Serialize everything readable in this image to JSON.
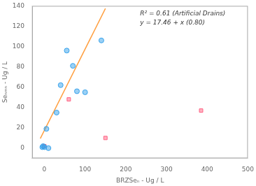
{
  "chart_data": {
    "type": "scatter",
    "xlabel": "BRZSeₙ - Ug / L",
    "ylabel": "Seₙₘₙ - Ug / L",
    "annotations": [
      "R² = 0.61 (Artificial Drains)",
      "y = 17.46 + x (0.80)"
    ],
    "series": [
      {
        "type": "scatter",
        "marker": "circle",
        "x": [
          -5,
          -3,
          0,
          5,
          10,
          30,
          40,
          55,
          70,
          80,
          100,
          140
        ],
        "values": [
          1,
          2,
          1,
          19,
          0,
          35,
          62,
          96,
          81,
          56,
          55,
          106
        ]
      },
      {
        "type": "scatter",
        "marker": "square",
        "x": [
          0,
          60,
          150,
          385
        ],
        "values": [
          2,
          48,
          10,
          37
        ]
      },
      {
        "type": "line",
        "line_style": "solid",
        "x": [
          -10,
          150
        ],
        "values": [
          9.46,
          137.46
        ]
      }
    ],
    "xlim": [
      -30,
      500
    ],
    "ylim": [
      -10,
      140
    ],
    "xticks": [
      0,
      100,
      200,
      300,
      400,
      500
    ],
    "yticks": [
      0,
      20,
      40,
      60,
      80,
      100,
      120,
      140
    ],
    "grid": false,
    "legend": false
  }
}
